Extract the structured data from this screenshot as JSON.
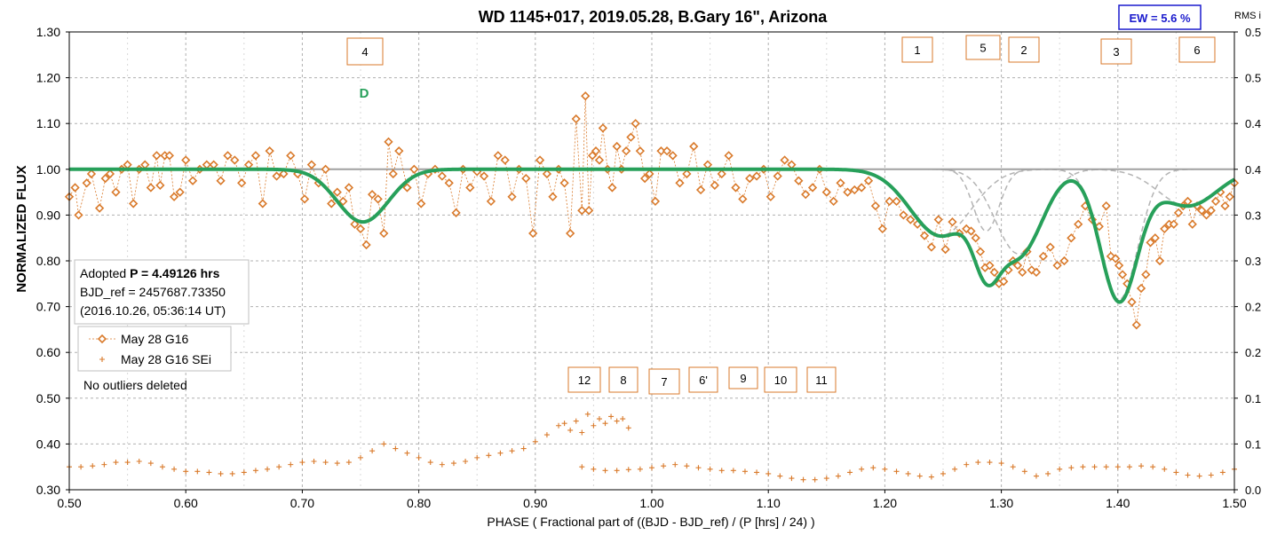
{
  "chart_data": {
    "type": "line",
    "title": "WD 1145+017, 2019.05.28, B.Gary 16\", Arizona",
    "xlabel": "PHASE ( Fractional part of ((BJD - BJD_ref) / (P [hrs] / 24) )",
    "ylabel": "NORMALIZED FLUX",
    "y2label": "RMS i",
    "xlim": [
      0.5,
      1.5
    ],
    "ylim": [
      0.3,
      1.3
    ],
    "y2lim": [
      0.0,
      0.5
    ],
    "x_ticks": [
      "0.50",
      "0.60",
      "0.70",
      "0.80",
      "0.90",
      "1.00",
      "1.10",
      "1.20",
      "1.30",
      "1.40",
      "1.50"
    ],
    "y_ticks": [
      "0.30",
      "0.40",
      "0.50",
      "0.60",
      "0.70",
      "0.80",
      "0.90",
      "1.00",
      "1.10",
      "1.20",
      "1.30"
    ],
    "y2_ticks": [
      "0.0",
      "0.1",
      "0.1",
      "0.2",
      "0.2",
      "0.3",
      "0.3",
      "0.4",
      "0.4",
      "0.5",
      "0.5"
    ],
    "grid": true,
    "ew_badge": "EW =  5.6 %",
    "info_box": {
      "line1_prefix": "Adopted ",
      "line1_bold": "P = 4.49126 hrs",
      "line2": "BJD_ref = 2457687.73350",
      "line3": "(2016.10.26, 05:36:14 UT)"
    },
    "legend": {
      "placement": "left",
      "entries": [
        "May 28 G16",
        "May 28 G16 SEi"
      ]
    },
    "note": "No outliers deleted",
    "dip_label": "D",
    "upper_boxes": [
      "4",
      "1",
      "5",
      "2",
      "3",
      "6"
    ],
    "lower_boxes": [
      "12",
      "8",
      "7",
      "6'",
      "9",
      "10",
      "11"
    ],
    "colors": {
      "flux": "#d97a2b",
      "model": "#27a05a",
      "baseline": "#a0a0a0",
      "components": "#b4b4b4",
      "badge_text": "#1a1acd",
      "dip_label": "#27a05a"
    },
    "model_baseline": 1.0,
    "model_dips": [
      {
        "center": 0.752,
        "depth": 0.115,
        "width": 0.022
      },
      {
        "center": 1.248,
        "depth": 0.145,
        "width": 0.026
      },
      {
        "center": 1.287,
        "depth": 0.135,
        "width": 0.011
      },
      {
        "center": 1.315,
        "depth": 0.185,
        "width": 0.02
      },
      {
        "center": 1.401,
        "depth": 0.285,
        "width": 0.016
      },
      {
        "center": 1.46,
        "depth": 0.08,
        "width": 0.025
      }
    ],
    "series": [
      {
        "name": "May 28 G16",
        "marker": "diamond",
        "x": [
          0.5,
          0.505,
          0.508,
          0.515,
          0.519,
          0.526,
          0.531,
          0.535,
          0.54,
          0.545,
          0.55,
          0.555,
          0.56,
          0.565,
          0.57,
          0.575,
          0.578,
          0.582,
          0.586,
          0.59,
          0.595,
          0.6,
          0.606,
          0.612,
          0.618,
          0.624,
          0.63,
          0.636,
          0.642,
          0.648,
          0.654,
          0.66,
          0.666,
          0.672,
          0.678,
          0.684,
          0.69,
          0.696,
          0.702,
          0.708,
          0.714,
          0.72,
          0.725,
          0.73,
          0.735,
          0.74,
          0.745,
          0.75,
          0.755,
          0.76,
          0.765,
          0.77,
          0.774,
          0.778,
          0.783,
          0.79,
          0.796,
          0.802,
          0.808,
          0.814,
          0.82,
          0.826,
          0.832,
          0.838,
          0.844,
          0.85,
          0.856,
          0.862,
          0.868,
          0.874,
          0.88,
          0.886,
          0.892,
          0.898,
          0.904,
          0.91,
          0.915,
          0.92,
          0.925,
          0.93,
          0.935,
          0.94,
          0.943,
          0.946,
          0.949,
          0.952,
          0.955,
          0.958,
          0.962,
          0.966,
          0.97,
          0.974,
          0.978,
          0.982,
          0.986,
          0.99,
          0.994,
          0.998,
          1.003,
          1.008,
          1.013,
          1.018,
          1.024,
          1.03,
          1.036,
          1.042,
          1.048,
          1.054,
          1.06,
          1.066,
          1.072,
          1.078,
          1.084,
          1.09,
          1.096,
          1.102,
          1.108,
          1.114,
          1.12,
          1.126,
          1.132,
          1.138,
          1.144,
          1.15,
          1.156,
          1.162,
          1.168,
          1.174,
          1.18,
          1.186,
          1.192,
          1.198,
          1.204,
          1.21,
          1.216,
          1.222,
          1.228,
          1.234,
          1.24,
          1.246,
          1.252,
          1.258,
          1.264,
          1.27,
          1.274,
          1.278,
          1.282,
          1.286,
          1.29,
          1.294,
          1.298,
          1.302,
          1.306,
          1.31,
          1.314,
          1.318,
          1.322,
          1.326,
          1.33,
          1.336,
          1.342,
          1.348,
          1.354,
          1.36,
          1.366,
          1.372,
          1.378,
          1.384,
          1.39,
          1.394,
          1.398,
          1.401,
          1.404,
          1.408,
          1.412,
          1.416,
          1.42,
          1.424,
          1.428,
          1.432,
          1.436,
          1.44,
          1.444,
          1.448,
          1.452,
          1.456,
          1.46,
          1.464,
          1.468,
          1.472,
          1.476,
          1.48,
          1.484,
          1.488,
          1.492,
          1.496,
          1.5
        ],
        "y": [
          0.94,
          0.96,
          0.9,
          0.97,
          0.99,
          0.915,
          0.98,
          0.99,
          0.95,
          1.0,
          1.01,
          0.925,
          1.0,
          1.01,
          0.96,
          1.03,
          0.965,
          1.03,
          1.03,
          0.94,
          0.95,
          1.02,
          0.975,
          1.0,
          1.01,
          1.01,
          0.975,
          1.03,
          1.02,
          0.97,
          1.01,
          1.03,
          0.925,
          1.04,
          0.985,
          0.99,
          1.03,
          0.99,
          0.935,
          1.01,
          0.97,
          1.0,
          0.925,
          0.95,
          0.93,
          0.96,
          0.88,
          0.87,
          0.835,
          0.945,
          0.935,
          0.86,
          1.06,
          0.99,
          1.04,
          0.96,
          1.0,
          0.925,
          0.99,
          1.0,
          0.985,
          0.97,
          0.905,
          1.0,
          0.96,
          0.995,
          0.985,
          0.93,
          1.03,
          1.02,
          0.94,
          1.0,
          0.98,
          0.86,
          1.02,
          0.99,
          0.94,
          1.0,
          0.97,
          0.86,
          1.11,
          0.91,
          1.16,
          0.91,
          1.03,
          1.04,
          1.02,
          1.09,
          1.0,
          0.96,
          1.05,
          1.0,
          1.04,
          1.07,
          1.1,
          1.04,
          0.98,
          0.99,
          0.93,
          1.04,
          1.04,
          1.03,
          0.97,
          0.99,
          1.05,
          0.955,
          1.01,
          0.965,
          0.99,
          1.03,
          0.96,
          0.935,
          0.98,
          0.985,
          1.0,
          0.94,
          0.985,
          1.02,
          1.01,
          0.975,
          0.945,
          0.96,
          1.0,
          0.95,
          0.93,
          0.97,
          0.95,
          0.955,
          0.96,
          0.975,
          0.92,
          0.87,
          0.93,
          0.93,
          0.9,
          0.89,
          0.88,
          0.855,
          0.83,
          0.89,
          0.825,
          0.885,
          0.86,
          0.87,
          0.865,
          0.85,
          0.82,
          0.785,
          0.79,
          0.775,
          0.75,
          0.755,
          0.78,
          0.8,
          0.79,
          0.775,
          0.82,
          0.78,
          0.775,
          0.81,
          0.83,
          0.79,
          0.8,
          0.85,
          0.88,
          0.92,
          0.89,
          0.875,
          0.92,
          0.81,
          0.805,
          0.79,
          0.77,
          0.75,
          0.71,
          0.66,
          0.74,
          0.77,
          0.84,
          0.85,
          0.8,
          0.87,
          0.88,
          0.88,
          0.905,
          0.92,
          0.93,
          0.88,
          0.92,
          0.91,
          0.9,
          0.91,
          0.93,
          0.95,
          0.92,
          0.94,
          0.97
        ]
      },
      {
        "name": "May 28 G16 SEi",
        "marker": "plus",
        "axis": "right",
        "x": [
          0.5,
          0.51,
          0.52,
          0.53,
          0.54,
          0.55,
          0.56,
          0.57,
          0.58,
          0.59,
          0.6,
          0.61,
          0.62,
          0.63,
          0.64,
          0.65,
          0.66,
          0.67,
          0.68,
          0.69,
          0.7,
          0.71,
          0.72,
          0.73,
          0.74,
          0.75,
          0.76,
          0.77,
          0.78,
          0.79,
          0.8,
          0.81,
          0.82,
          0.83,
          0.84,
          0.85,
          0.86,
          0.87,
          0.88,
          0.89,
          0.9,
          0.91,
          0.92,
          0.925,
          0.93,
          0.935,
          0.94,
          0.945,
          0.95,
          0.955,
          0.96,
          0.965,
          0.97,
          0.975,
          0.98,
          0.94,
          0.95,
          0.96,
          0.97,
          0.98,
          0.99,
          1.0,
          1.01,
          1.02,
          1.03,
          1.04,
          1.05,
          1.06,
          1.07,
          1.08,
          1.09,
          1.1,
          1.11,
          1.12,
          1.13,
          1.14,
          1.15,
          1.16,
          1.17,
          1.18,
          1.19,
          1.2,
          1.21,
          1.22,
          1.23,
          1.24,
          1.25,
          1.26,
          1.27,
          1.28,
          1.29,
          1.3,
          1.31,
          1.32,
          1.33,
          1.34,
          1.35,
          1.36,
          1.37,
          1.38,
          1.39,
          1.4,
          1.41,
          1.42,
          1.43,
          1.44,
          1.45,
          1.46,
          1.47,
          1.48,
          1.49,
          1.5
        ],
        "y": [
          0.35,
          0.35,
          0.352,
          0.355,
          0.36,
          0.36,
          0.362,
          0.358,
          0.35,
          0.345,
          0.34,
          0.34,
          0.338,
          0.335,
          0.335,
          0.338,
          0.342,
          0.345,
          0.35,
          0.355,
          0.36,
          0.362,
          0.36,
          0.358,
          0.36,
          0.37,
          0.385,
          0.4,
          0.39,
          0.38,
          0.37,
          0.36,
          0.355,
          0.358,
          0.362,
          0.37,
          0.375,
          0.38,
          0.385,
          0.39,
          0.405,
          0.42,
          0.44,
          0.445,
          0.43,
          0.45,
          0.425,
          0.465,
          0.44,
          0.455,
          0.445,
          0.46,
          0.45,
          0.455,
          0.435,
          0.35,
          0.345,
          0.342,
          0.342,
          0.344,
          0.345,
          0.348,
          0.352,
          0.355,
          0.352,
          0.348,
          0.345,
          0.342,
          0.342,
          0.34,
          0.338,
          0.335,
          0.33,
          0.325,
          0.322,
          0.322,
          0.325,
          0.33,
          0.338,
          0.345,
          0.348,
          0.345,
          0.34,
          0.335,
          0.33,
          0.328,
          0.335,
          0.345,
          0.355,
          0.36,
          0.36,
          0.358,
          0.35,
          0.34,
          0.33,
          0.335,
          0.345,
          0.348,
          0.35,
          0.35,
          0.35,
          0.35,
          0.35,
          0.352,
          0.35,
          0.345,
          0.338,
          0.332,
          0.33,
          0.332,
          0.338,
          0.345
        ]
      }
    ]
  }
}
